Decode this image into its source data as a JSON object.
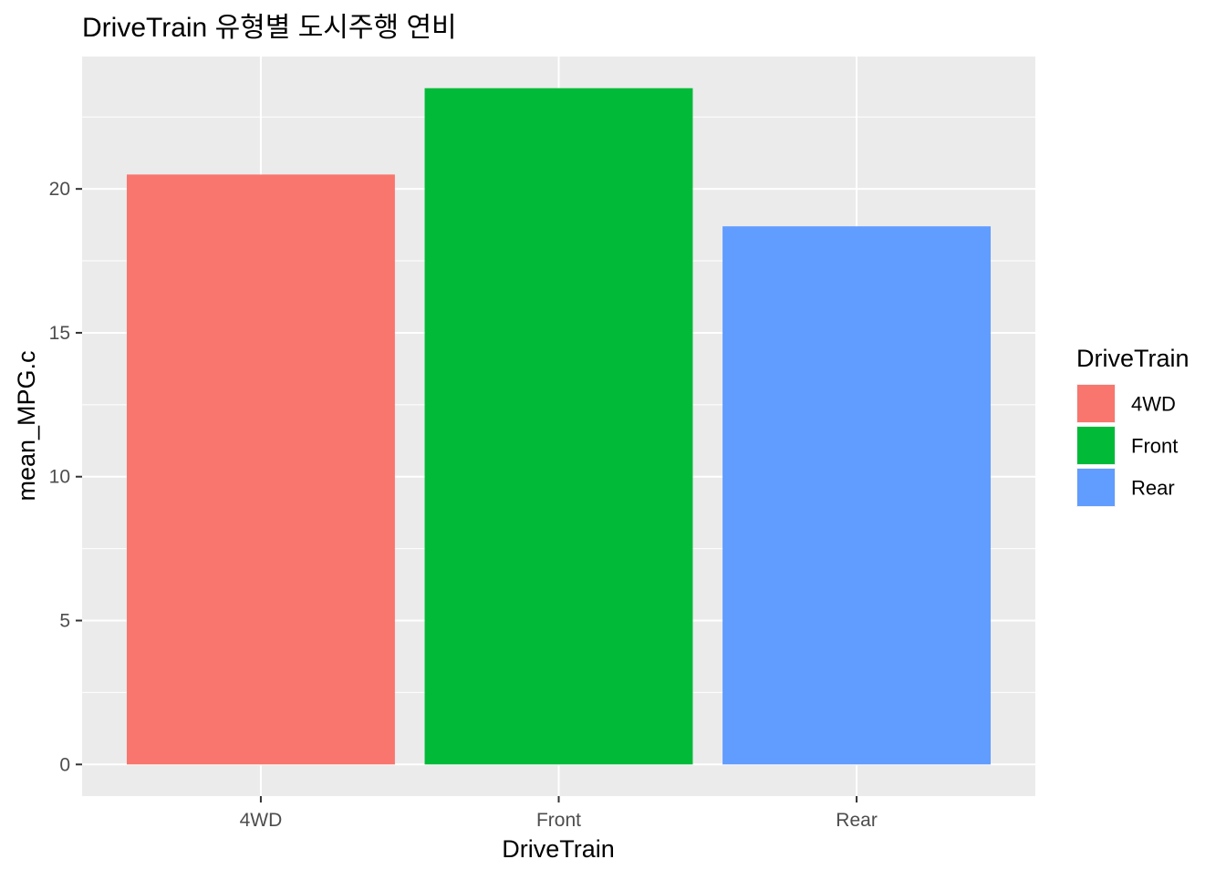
{
  "chart_data": {
    "type": "bar",
    "title": "DriveTrain 유형별 도시주행 연비",
    "xlabel": "DriveTrain",
    "ylabel": "mean_MPG.c",
    "categories": [
      "4WD",
      "Front",
      "Rear"
    ],
    "values": [
      20.5,
      23.5,
      18.7
    ],
    "colors": [
      "#F8766D",
      "#00BA38",
      "#619CFF"
    ],
    "ylim": [
      -1.1,
      24.6
    ],
    "y_ticks": [
      0,
      5,
      10,
      15,
      20
    ],
    "y_tick_labels": [
      "0",
      "5",
      "10",
      "15",
      "20"
    ],
    "grid": true,
    "legend": {
      "title": "DriveTrain",
      "position": "right",
      "entries": [
        "4WD",
        "Front",
        "Rear"
      ]
    }
  }
}
